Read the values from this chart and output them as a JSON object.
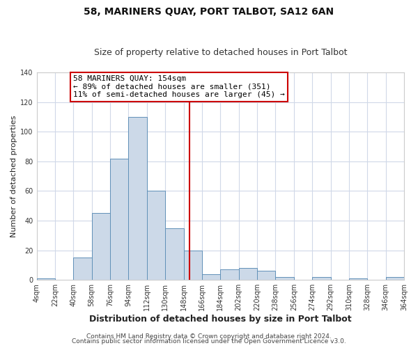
{
  "title": "58, MARINERS QUAY, PORT TALBOT, SA12 6AN",
  "subtitle": "Size of property relative to detached houses in Port Talbot",
  "xlabel": "Distribution of detached houses by size in Port Talbot",
  "ylabel": "Number of detached properties",
  "bin_edges": [
    4,
    22,
    40,
    58,
    76,
    94,
    112,
    130,
    148,
    166,
    184,
    202,
    220,
    238,
    256,
    274,
    292,
    310,
    328,
    346,
    364
  ],
  "bin_counts": [
    1,
    0,
    15,
    45,
    82,
    110,
    60,
    35,
    20,
    4,
    7,
    8,
    6,
    2,
    0,
    2,
    0,
    1,
    0,
    2
  ],
  "bar_color": "#ccd9e8",
  "bar_edge_color": "#6090b8",
  "property_size": 154,
  "vline_color": "#cc0000",
  "annotation_line1": "58 MARINERS QUAY: 154sqm",
  "annotation_line2": "← 89% of detached houses are smaller (351)",
  "annotation_line3": "11% of semi-detached houses are larger (45) →",
  "annotation_box_color": "#ffffff",
  "annotation_box_edge_color": "#cc0000",
  "ylim": [
    0,
    140
  ],
  "yticks": [
    0,
    20,
    40,
    60,
    80,
    100,
    120,
    140
  ],
  "tick_labels": [
    "4sqm",
    "22sqm",
    "40sqm",
    "58sqm",
    "76sqm",
    "94sqm",
    "112sqm",
    "130sqm",
    "148sqm",
    "166sqm",
    "184sqm",
    "202sqm",
    "220sqm",
    "238sqm",
    "256sqm",
    "274sqm",
    "292sqm",
    "310sqm",
    "328sqm",
    "346sqm",
    "364sqm"
  ],
  "footer1": "Contains HM Land Registry data © Crown copyright and database right 2024.",
  "footer2": "Contains public sector information licensed under the Open Government Licence v3.0.",
  "plot_bg_color": "#ffffff",
  "fig_bg_color": "#ffffff",
  "grid_color": "#d0d8e8",
  "title_fontsize": 10,
  "subtitle_fontsize": 9,
  "xlabel_fontsize": 9,
  "ylabel_fontsize": 8,
  "tick_fontsize": 7,
  "footer_fontsize": 6.5,
  "annotation_fontsize": 8
}
